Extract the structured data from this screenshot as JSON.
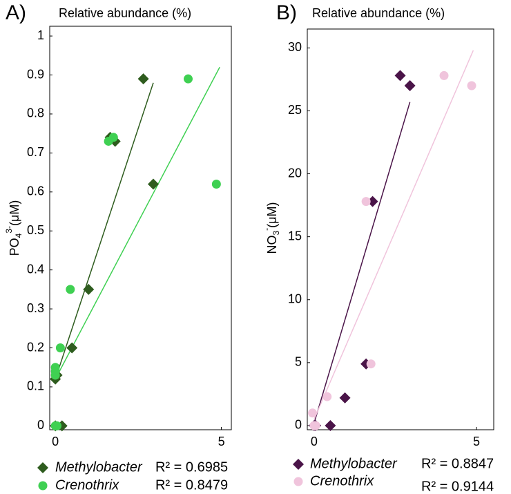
{
  "chart_data": [
    {
      "type": "scatter",
      "panel_label": "A)",
      "title": "Relative abundance (%)",
      "ylabel": {
        "base": "PO",
        "sub": "4",
        "sup": "3-",
        "unit": "(μM)"
      },
      "xlim": [
        -0.17,
        5.3
      ],
      "ylim": [
        -0.01,
        1.025
      ],
      "xticks": [
        0,
        5
      ],
      "yticks": [
        0,
        0.1,
        0.2,
        0.3,
        0.4,
        0.5,
        0.6,
        0.7,
        0.8,
        0.9,
        1
      ],
      "grid": false,
      "series": [
        {
          "name": "Methylobacter",
          "color": "#2e5c1e",
          "marker": "diamond",
          "x": [
            2.65,
            1.65,
            1.8,
            2.95,
            1.0,
            0.5,
            0.05,
            0.0,
            0.2,
            0.0
          ],
          "y": [
            0.89,
            0.74,
            0.73,
            0.62,
            0.35,
            0.2,
            0.13,
            0.12,
            0.0,
            0.0
          ],
          "trend": {
            "x": [
              0,
              2.95
            ],
            "y": [
              0.12,
              0.88
            ]
          },
          "r2_label": "R² = 0.6985"
        },
        {
          "name": "Crenothrix",
          "color": "#3fd052",
          "marker": "circle",
          "x": [
            4.0,
            4.85,
            1.6,
            1.75,
            0.45,
            0.15,
            0.0,
            0.0,
            0.0,
            0.0,
            0.05
          ],
          "y": [
            0.89,
            0.62,
            0.73,
            0.74,
            0.35,
            0.2,
            0.15,
            0.14,
            0.13,
            0.0,
            0.0
          ],
          "trend": {
            "x": [
              0,
              4.95
            ],
            "y": [
              0.12,
              0.92
            ]
          },
          "r2_label": "R² = 0.8479"
        }
      ]
    },
    {
      "type": "scatter",
      "panel_label": "B)",
      "title": "Relative abundance (%)",
      "ylabel": {
        "base": "NO",
        "sub": "3",
        "sup": "-",
        "unit": "(μM)"
      },
      "xlim": [
        -0.21,
        5.53
      ],
      "ylim": [
        -0.33,
        31.5
      ],
      "xticks": [
        0,
        5
      ],
      "yticks": [
        0,
        5,
        10,
        15,
        20,
        25,
        30
      ],
      "grid": false,
      "series": [
        {
          "name": "Methylobacter",
          "color": "#4a1448",
          "marker": "diamond",
          "x": [
            2.65,
            2.95,
            1.8,
            1.6,
            0.95,
            0.5,
            0.0,
            0.05
          ],
          "y": [
            27.8,
            27.0,
            17.8,
            4.9,
            2.2,
            0.0,
            0.0,
            0.0
          ],
          "trend": {
            "x": [
              0,
              2.95
            ],
            "y": [
              0.2,
              25.7
            ]
          },
          "r2_label": "R² = 0.8847"
        },
        {
          "name": "Crenothrix",
          "color": "#f0c4dc",
          "marker": "circle",
          "x": [
            4.0,
            4.85,
            1.6,
            1.75,
            0.4,
            -0.05,
            0.0,
            0.05
          ],
          "y": [
            27.8,
            27.0,
            17.8,
            4.9,
            2.3,
            1.0,
            0.0,
            0.0
          ],
          "trend": {
            "x": [
              0,
              4.9
            ],
            "y": [
              0.5,
              29.8
            ]
          },
          "r2_label": "R² = 0.9144"
        }
      ]
    }
  ]
}
